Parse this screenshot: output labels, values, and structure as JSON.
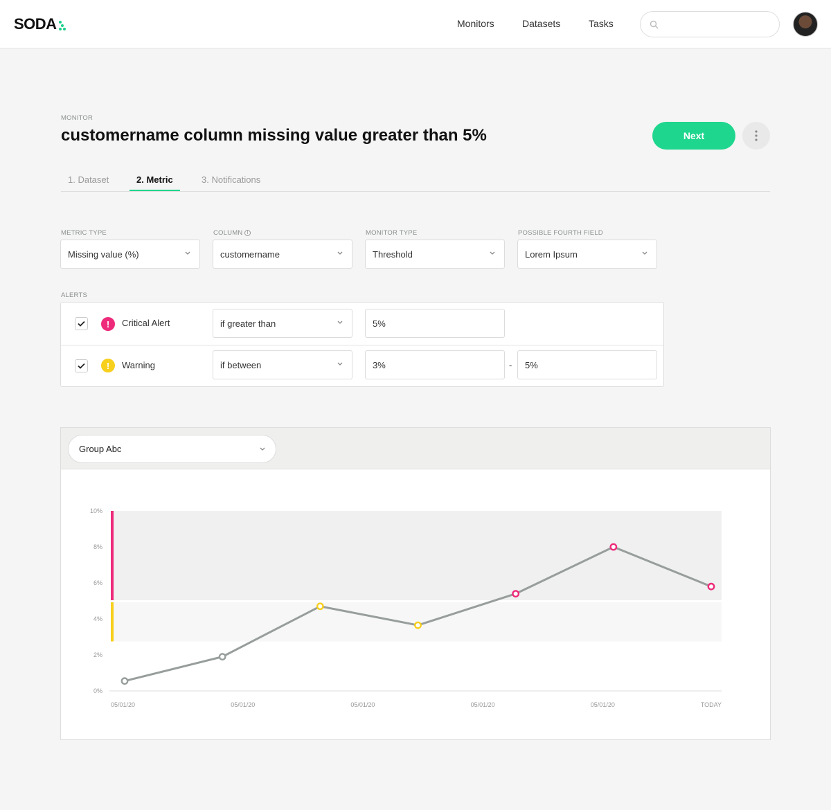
{
  "header": {
    "logo": "SODA",
    "nav": [
      "Monitors",
      "Datasets",
      "Tasks"
    ],
    "search_placeholder": ""
  },
  "page": {
    "kicker": "MONITOR",
    "title": "customername column missing value greater than 5%",
    "next_label": "Next"
  },
  "tabs": [
    "1. Dataset",
    "2. Metric",
    "3. Notifications"
  ],
  "fields": [
    {
      "label": "METRIC TYPE",
      "value": "Missing value (%)"
    },
    {
      "label": "COLUMN",
      "value": "customername"
    },
    {
      "label": "MONITOR TYPE",
      "value": "Threshold"
    },
    {
      "label": "POSSIBLE FOURTH FIELD",
      "value": "Lorem Ipsum"
    }
  ],
  "alerts": {
    "label": "ALERTS",
    "rows": [
      {
        "name": "Critical Alert",
        "condition": "if greater than",
        "value1": "5%",
        "checked": true,
        "color": "#ee2a7b"
      },
      {
        "name": "Warning",
        "condition": "if between",
        "value1": "3%",
        "sep": "-",
        "value2": "5%",
        "checked": true,
        "color": "#f7cf1d"
      }
    ]
  },
  "group_select": "Group Abc",
  "chart_data": {
    "type": "line",
    "y_ticks": [
      "0%",
      "2%",
      "4%",
      "6%",
      "8%",
      "10%"
    ],
    "ylim": [
      0,
      10
    ],
    "x_labels": [
      "05/01/20",
      "05/01/20",
      "05/01/20",
      "05/01/20",
      "05/01/20",
      "TODAY"
    ],
    "values": [
      0.55,
      1.9,
      4.7,
      3.65,
      5.4,
      8.0,
      5.8
    ],
    "point_status": [
      "ok",
      "ok",
      "warning",
      "warning",
      "critical",
      "critical",
      "critical"
    ],
    "bands": [
      {
        "name": "critical",
        "from": 5,
        "to": 10,
        "color": "#ee2a7b"
      },
      {
        "name": "warning",
        "from": 2.75,
        "to": 5,
        "color": "#f7cf1d"
      }
    ]
  }
}
